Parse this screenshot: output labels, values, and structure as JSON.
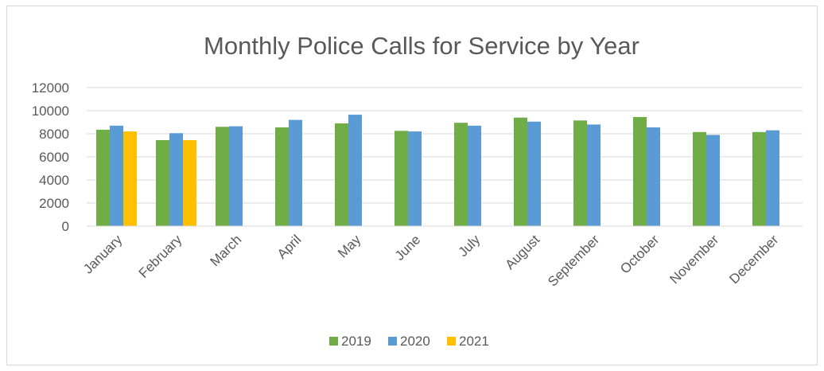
{
  "chart_data": {
    "type": "bar",
    "title": "Monthly Police Calls for Service by Year",
    "xlabel": "",
    "ylabel": "",
    "ylim": [
      0,
      12000
    ],
    "yticks": [
      0,
      2000,
      4000,
      6000,
      8000,
      10000,
      12000
    ],
    "grid": "horizontal",
    "legend_position": "bottom",
    "categories": [
      "January",
      "February",
      "March",
      "April",
      "May",
      "June",
      "July",
      "August",
      "September",
      "October",
      "November",
      "December"
    ],
    "series": [
      {
        "name": "2019",
        "color": "#70ad47",
        "values": [
          8350,
          7450,
          8600,
          8550,
          8900,
          8250,
          8950,
          9400,
          9150,
          9450,
          8150,
          8150
        ]
      },
      {
        "name": "2020",
        "color": "#5b9bd5",
        "values": [
          8700,
          8050,
          8650,
          9200,
          9650,
          8200,
          8700,
          9050,
          8800,
          8550,
          7900,
          8300
        ]
      },
      {
        "name": "2021",
        "color": "#ffc000",
        "values": [
          8200,
          7450,
          null,
          null,
          null,
          null,
          null,
          null,
          null,
          null,
          null,
          null
        ]
      }
    ]
  }
}
